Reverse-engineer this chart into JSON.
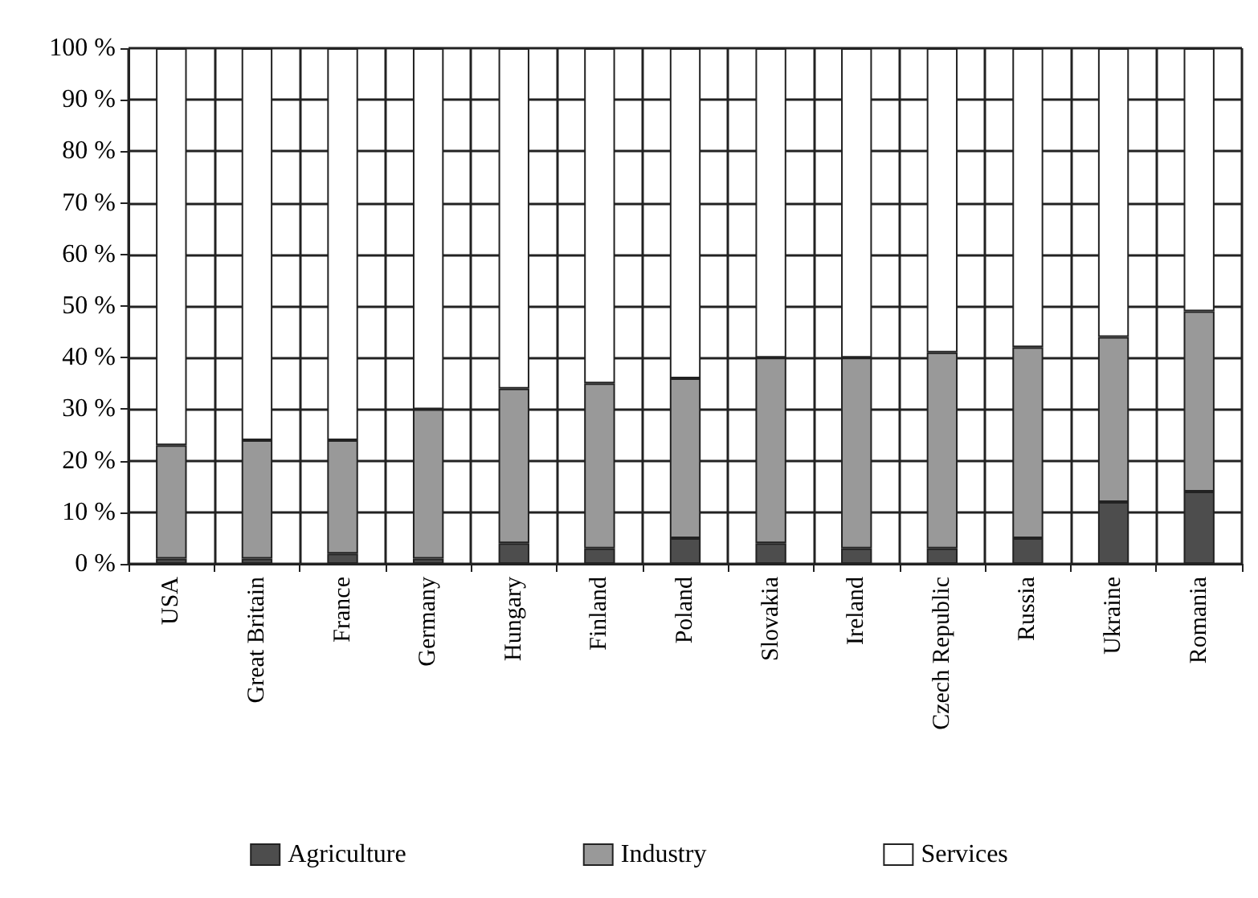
{
  "chart_data": {
    "type": "bar",
    "stacked": true,
    "categories": [
      "USA",
      "Great Britain",
      "France",
      "Germany",
      "Hungary",
      "Finland",
      "Poland",
      "Slovakia",
      "Ireland",
      "Czech Republic",
      "Russia",
      "Ukraine",
      "Romania"
    ],
    "series": [
      {
        "name": "Agriculture",
        "color": "#4d4d4d",
        "values": [
          1,
          1,
          2,
          1,
          4,
          3,
          5,
          4,
          3,
          3,
          5,
          12,
          14
        ]
      },
      {
        "name": "Industry",
        "color": "#999999",
        "values": [
          22,
          23,
          22,
          29,
          30,
          32,
          31,
          36,
          37,
          38,
          37,
          32,
          35
        ]
      },
      {
        "name": "Services",
        "color": "#ffffff",
        "values": [
          77,
          76,
          76,
          70,
          66,
          65,
          64,
          60,
          60,
          59,
          58,
          56,
          51
        ]
      }
    ],
    "ylim": [
      0,
      100
    ],
    "yticks": [
      {
        "value": 0,
        "label": "0 %"
      },
      {
        "value": 10,
        "label": "10 %"
      },
      {
        "value": 20,
        "label": "20 %"
      },
      {
        "value": 30,
        "label": "30 %"
      },
      {
        "value": 40,
        "label": "40 %"
      },
      {
        "value": 50,
        "label": "50 %"
      },
      {
        "value": 60,
        "label": "60 %"
      },
      {
        "value": 70,
        "label": "70 %"
      },
      {
        "value": 80,
        "label": "80 %"
      },
      {
        "value": 90,
        "label": "90 %"
      },
      {
        "value": 100,
        "label": "100 %"
      }
    ],
    "grid": true,
    "legend": "bottom"
  }
}
